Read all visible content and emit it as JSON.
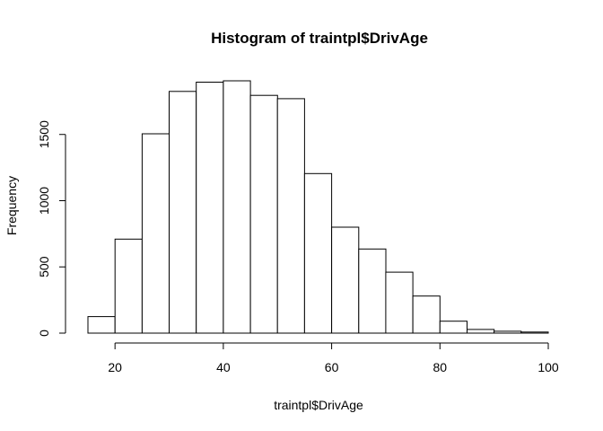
{
  "chart_data": {
    "type": "bar",
    "title": "Histogram of traintpl$DrivAge",
    "xlabel": "traintpl$DrivAge",
    "ylabel": "Frequency",
    "bin_edges": [
      15,
      20,
      25,
      30,
      35,
      40,
      45,
      50,
      55,
      60,
      65,
      70,
      75,
      80,
      85,
      90,
      95,
      100
    ],
    "values": [
      125,
      710,
      1505,
      1825,
      1895,
      1905,
      1795,
      1770,
      1205,
      800,
      635,
      460,
      280,
      90,
      28,
      14,
      8
    ],
    "xlim": [
      15,
      100
    ],
    "ylim": [
      0,
      1905
    ],
    "x_ticks": [
      20,
      40,
      60,
      80,
      100
    ],
    "y_ticks": [
      0,
      500,
      1000,
      1500
    ],
    "x_tick_labels": [
      "20",
      "40",
      "60",
      "80",
      "100"
    ],
    "y_tick_labels": [
      "0",
      "500",
      "1000",
      "1500"
    ],
    "bar_fill": "#ffffff",
    "bar_stroke": "#000000",
    "grid": false,
    "legend": "none"
  }
}
